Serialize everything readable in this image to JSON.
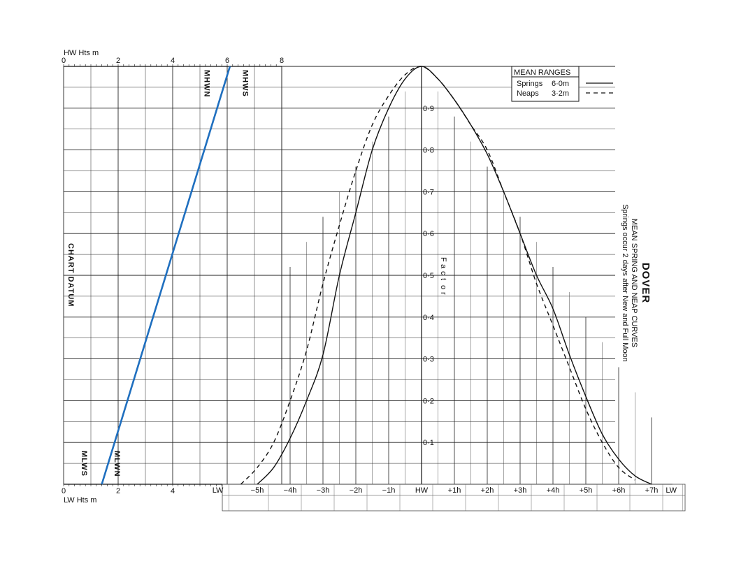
{
  "chart_data": {
    "type": "line",
    "title": "DOVER",
    "subtitle": "MEAN SPRING AND NEAP CURVES",
    "note": "Springs occur 2 days after New and Full Moon",
    "legend": {
      "title": "MEAN RANGES",
      "entries": [
        {
          "name": "Springs",
          "value": "6·0m",
          "style": "solid"
        },
        {
          "name": "Neaps",
          "value": "3·2m",
          "style": "dashed"
        }
      ],
      "placement": "top-right"
    },
    "height_axis": {
      "top_label": "HW Hts m",
      "bottom_label": "LW Hts m",
      "top_ticks": [
        "0",
        "2",
        "4",
        "6",
        "8"
      ],
      "bottom_ticks": [
        "0",
        "2",
        "4"
      ],
      "range": [
        0,
        8
      ]
    },
    "reference_labels": [
      "MHWN",
      "MHWS",
      "CHART DATUM",
      "MLWS",
      "MLWN"
    ],
    "reference_heights": {
      "MHWN": 5.3,
      "MHWS": 6.7,
      "MLWS": 0.8,
      "MLWN": 2.0
    },
    "range_line": {
      "lw_height": 1.4,
      "hw_height": 6.1,
      "color": "#1f6fbf"
    },
    "factor_axis": {
      "label": "Factor",
      "ticks": [
        "0·1",
        "0·2",
        "0·3",
        "0·4",
        "0·5",
        "0·6",
        "0·7",
        "0·8",
        "0·9"
      ],
      "range": [
        0,
        1
      ]
    },
    "time_axis": {
      "labels": [
        "LW",
        "−5h",
        "−4h",
        "−3h",
        "−2h",
        "−1h",
        "HW",
        "+1h",
        "+2h",
        "+3h",
        "+4h",
        "+5h",
        "+6h",
        "+7h",
        "LW"
      ],
      "range_hours": [
        -6,
        7.3
      ]
    },
    "series": [
      {
        "name": "Springs",
        "style": "solid",
        "x": [
          -5.0,
          -4.5,
          -4.0,
          -3.5,
          -3.0,
          -2.5,
          -2.0,
          -1.5,
          -1.0,
          -0.5,
          0.0,
          0.5,
          1.0,
          1.5,
          2.0,
          2.5,
          3.0,
          3.5,
          4.0,
          4.5,
          5.0,
          5.5,
          6.0,
          6.5,
          7.0
        ],
        "y": [
          0.0,
          0.04,
          0.11,
          0.2,
          0.31,
          0.5,
          0.65,
          0.8,
          0.9,
          0.97,
          1.0,
          0.97,
          0.92,
          0.86,
          0.79,
          0.7,
          0.6,
          0.5,
          0.42,
          0.31,
          0.21,
          0.12,
          0.06,
          0.02,
          0.0
        ]
      },
      {
        "name": "Neaps",
        "style": "dashed",
        "x": [
          -5.5,
          -5.0,
          -4.5,
          -4.0,
          -3.5,
          -3.0,
          -2.5,
          -2.0,
          -1.5,
          -1.0,
          -0.5,
          0.0,
          0.5,
          1.0,
          1.5,
          2.0,
          2.5,
          3.0,
          3.5,
          4.0,
          4.5,
          5.0,
          5.5,
          6.0,
          6.5
        ],
        "y": [
          0.0,
          0.04,
          0.1,
          0.2,
          0.32,
          0.48,
          0.62,
          0.75,
          0.86,
          0.93,
          0.98,
          1.0,
          0.97,
          0.92,
          0.86,
          0.8,
          0.7,
          0.6,
          0.48,
          0.38,
          0.28,
          0.18,
          0.1,
          0.04,
          0.01
        ]
      }
    ],
    "grid": true
  }
}
